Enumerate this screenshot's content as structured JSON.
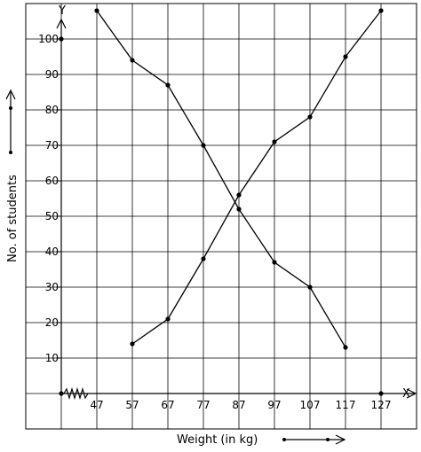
{
  "chart_data": {
    "type": "line",
    "x_axis_letter": "X",
    "y_axis_letter": "Y",
    "xlabel": "Weight (in kg)",
    "ylabel": "No. of students",
    "x_ticks": [
      47,
      57,
      67,
      77,
      87,
      97,
      107,
      117,
      127
    ],
    "y_ticks": [
      10,
      20,
      30,
      40,
      50,
      60,
      70,
      80,
      90,
      100
    ],
    "y_tick_labels": [
      "10",
      "20",
      "30",
      "40",
      "50",
      "60",
      "70",
      "80",
      "90",
      "100"
    ],
    "x_tick_labels": [
      "47",
      "57",
      "67",
      "77",
      "87",
      "97",
      "107",
      "117",
      "127"
    ],
    "xlim": [
      37,
      137
    ],
    "ylim": [
      0,
      110
    ],
    "grid": true,
    "axis_break": "x",
    "series": [
      {
        "x": [
          57,
          67,
          77,
          87,
          97,
          107,
          117,
          127
        ],
        "y": [
          14,
          21,
          38,
          56,
          71,
          78,
          95,
          108
        ]
      },
      {
        "x": [
          47,
          57,
          67,
          77,
          87,
          97,
          107,
          117
        ],
        "y": [
          108,
          94,
          87,
          70,
          52,
          37,
          30,
          13
        ]
      }
    ],
    "origin_marker": {
      "x": 37,
      "y": 0
    },
    "extra_points": [
      {
        "x": 37,
        "y": 100
      },
      {
        "x": 127,
        "y": 0
      }
    ]
  }
}
